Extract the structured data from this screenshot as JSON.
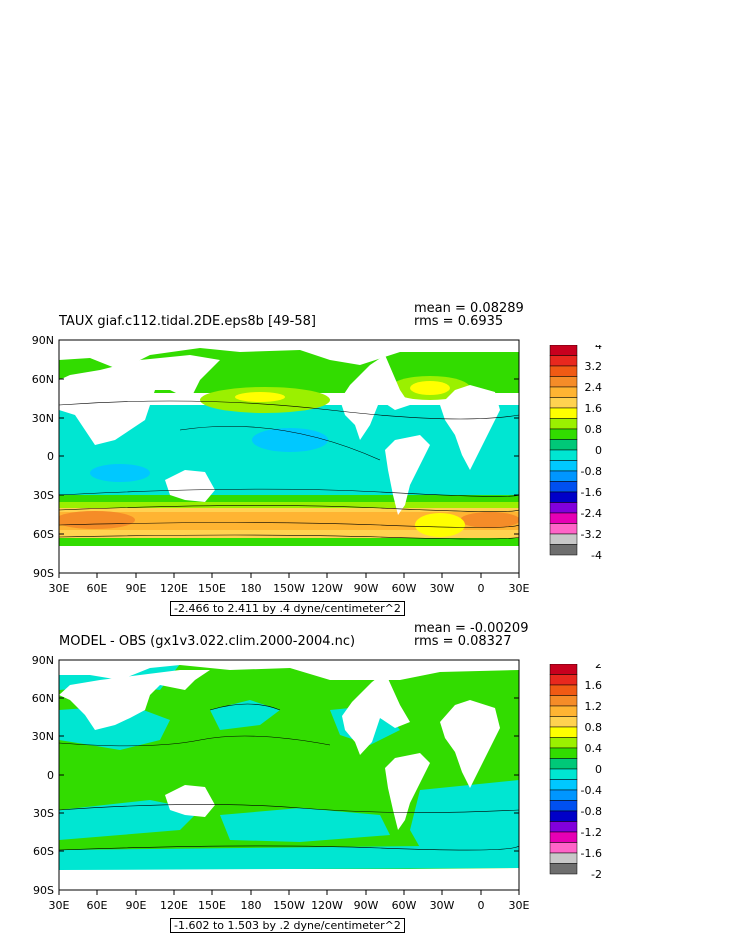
{
  "panels": [
    {
      "title": "TAUX giaf.c112.tidal.2DE.eps8b [49-58]",
      "mean": "mean = 0.08289",
      "rms": "rms = 0.6935",
      "range": "-2.466 to 2.411 by .4 dyne/centimeter^2",
      "lat_labels": [
        "90N",
        "60N",
        "30N",
        "0",
        "30S",
        "60S",
        "90S"
      ],
      "lon_labels": [
        "30E",
        "60E",
        "90E",
        "120E",
        "150E",
        "180",
        "150W",
        "120W",
        "90W",
        "60W",
        "30W",
        "0",
        "30E"
      ],
      "colorbar_labels": [
        "4",
        "3.2",
        "2.4",
        "1.6",
        "0.8",
        "0",
        "-0.8",
        "-1.6",
        "-2.4",
        "-3.2",
        "-4"
      ],
      "colorbar_colors": [
        "#c8001e",
        "#e8281e",
        "#f05a14",
        "#f58c28",
        "#ffb432",
        "#ffd250",
        "#ffff00",
        "#9bf000",
        "#32dc00",
        "#00c878",
        "#00e6d2",
        "#00c8ff",
        "#0096ff",
        "#0050f0",
        "#0000c8",
        "#8200dc",
        "#e600b4",
        "#ff64c8",
        "#c8c8c8",
        "#6e6e6e"
      ]
    },
    {
      "title": "MODEL - OBS (gx1v3.022.clim.2000-2004.nc)",
      "mean": "mean = -0.00209",
      "rms": "rms = 0.08327",
      "range": "-1.602 to 1.503 by .2 dyne/centimeter^2",
      "lat_labels": [
        "90N",
        "60N",
        "30N",
        "0",
        "30S",
        "60S",
        "90S"
      ],
      "lon_labels": [
        "30E",
        "60E",
        "90E",
        "120E",
        "150E",
        "180",
        "150W",
        "120W",
        "90W",
        "60W",
        "30W",
        "0",
        "30E"
      ],
      "colorbar_labels": [
        "2",
        "1.6",
        "1.2",
        "0.8",
        "0.4",
        "0",
        "-0.4",
        "-0.8",
        "-1.2",
        "-1.6",
        "-2"
      ],
      "colorbar_colors": [
        "#c8001e",
        "#e8281e",
        "#f05a14",
        "#f58c28",
        "#ffb432",
        "#ffd250",
        "#ffff00",
        "#9bf000",
        "#32dc00",
        "#00c878",
        "#00e6d2",
        "#00c8ff",
        "#0096ff",
        "#0050f0",
        "#0000c8",
        "#8200dc",
        "#e600b4",
        "#ff64c8",
        "#c8c8c8",
        "#6e6e6e"
      ]
    }
  ]
}
